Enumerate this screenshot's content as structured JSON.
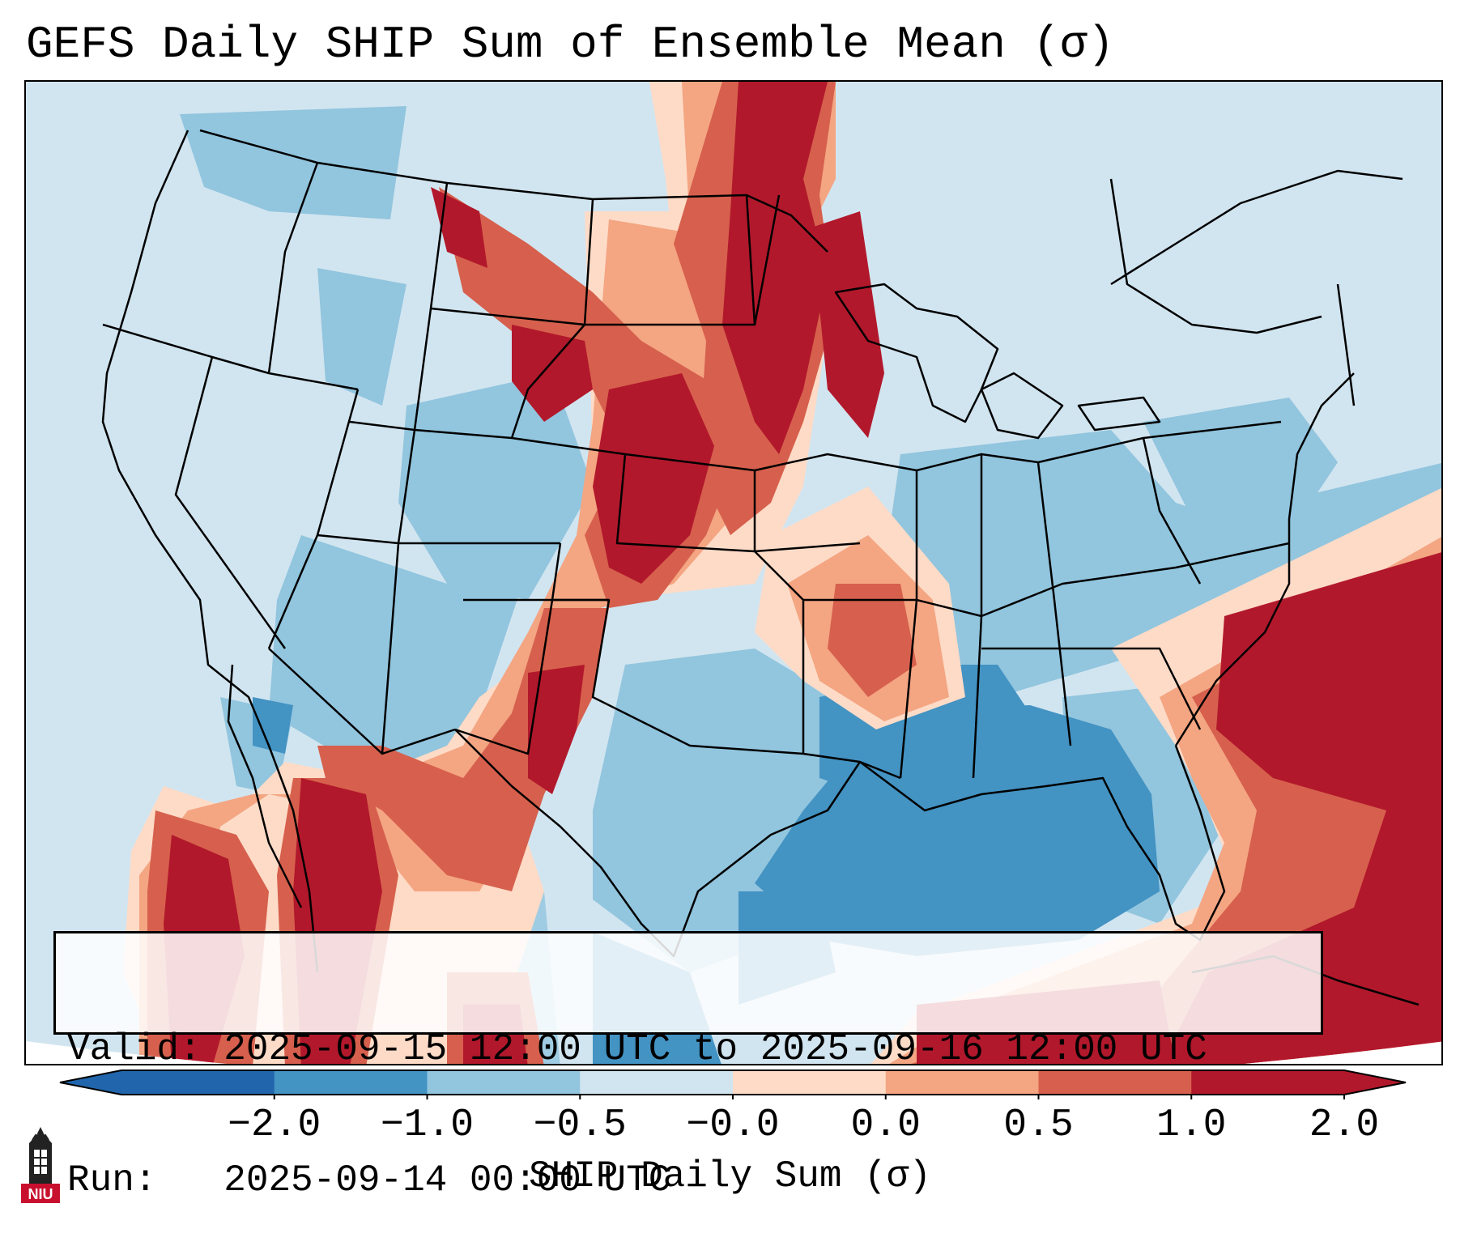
{
  "title": "GEFS Daily SHIP Sum of Ensemble Mean (σ)",
  "info": {
    "valid_line": "Valid: 2025-09-15 12:00 UTC to 2025-09-16 12:00 UTC",
    "run_line": "Run:   2025-09-14 00:00 UTC"
  },
  "colorbar": {
    "label": "SHIP Daily Sum (σ)",
    "ticks": [
      "−2.0",
      "−1.0",
      "−0.5",
      "−0.0",
      "0.0",
      "0.5",
      "1.0",
      "2.0"
    ],
    "colors": [
      "#2166ac",
      "#4393c3",
      "#92c5de",
      "#d1e5f0",
      "#fddbc7",
      "#f4a582",
      "#d6604d",
      "#b2182b"
    ],
    "extend": "both"
  },
  "logo": {
    "text": "NIU",
    "icon": "university-tower-icon"
  },
  "colors": {
    "ocean_outside": "#ffffff",
    "borders": "#000000"
  }
}
